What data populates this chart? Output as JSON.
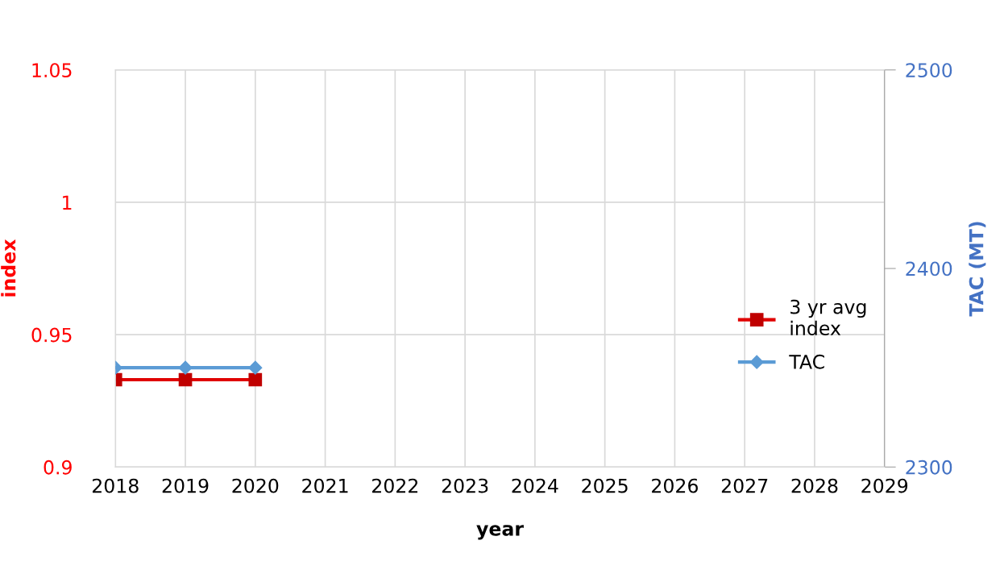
{
  "chart_data": {
    "type": "line",
    "xlabel": "year",
    "ylabel": "index",
    "y2label": "TAC (MT)",
    "x": [
      2018,
      2019,
      2020
    ],
    "series": [
      {
        "name": "3 yr avg\nindex",
        "color": "#e00000",
        "values": [
          0.933,
          0.933,
          0.933
        ],
        "marker": "square"
      },
      {
        "name": "TAC",
        "color": "#5b9bd5",
        "values": [
          2350,
          2350,
          2350
        ],
        "axis": "y2",
        "marker": "diamond"
      }
    ],
    "xlim": [
      2018,
      2029
    ],
    "xticks": [
      2018,
      2019,
      2020,
      2021,
      2022,
      2023,
      2024,
      2025,
      2026,
      2027,
      2028,
      2029
    ],
    "ylim": [
      0.9,
      1.05
    ],
    "yticks": [
      0.9,
      0.95,
      1,
      1.05
    ],
    "y2lim": [
      2300,
      2500
    ],
    "y2ticks": [
      2300,
      2400,
      2500
    ],
    "grid": true,
    "legend": "right",
    "line_style": "solid"
  }
}
